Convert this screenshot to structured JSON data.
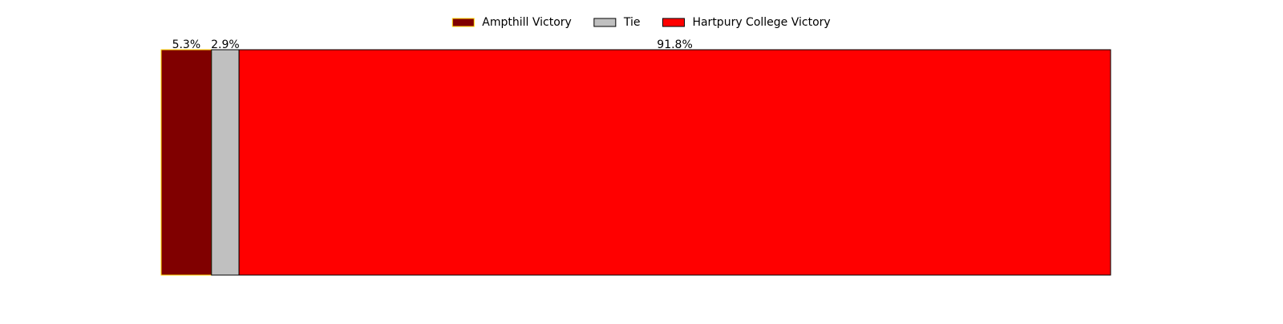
{
  "chart_data": {
    "type": "bar",
    "orientation": "horizontal",
    "stacked": true,
    "normalized": true,
    "xlim": [
      0,
      100
    ],
    "grid": false,
    "axes_visible": false,
    "legend_position": "top-center",
    "series": [
      {
        "name": "Ampthill Victory",
        "value": 5.3,
        "label": "5.3%",
        "color": "#800000",
        "edge_color": "#ffd700"
      },
      {
        "name": "Tie",
        "value": 2.9,
        "label": "2.9%",
        "color": "#c0c0c0",
        "edge_color": "#000000"
      },
      {
        "name": "Hartpury College Victory",
        "value": 91.8,
        "label": "91.8%",
        "color": "#ff0000",
        "edge_color": "#000000"
      }
    ]
  }
}
